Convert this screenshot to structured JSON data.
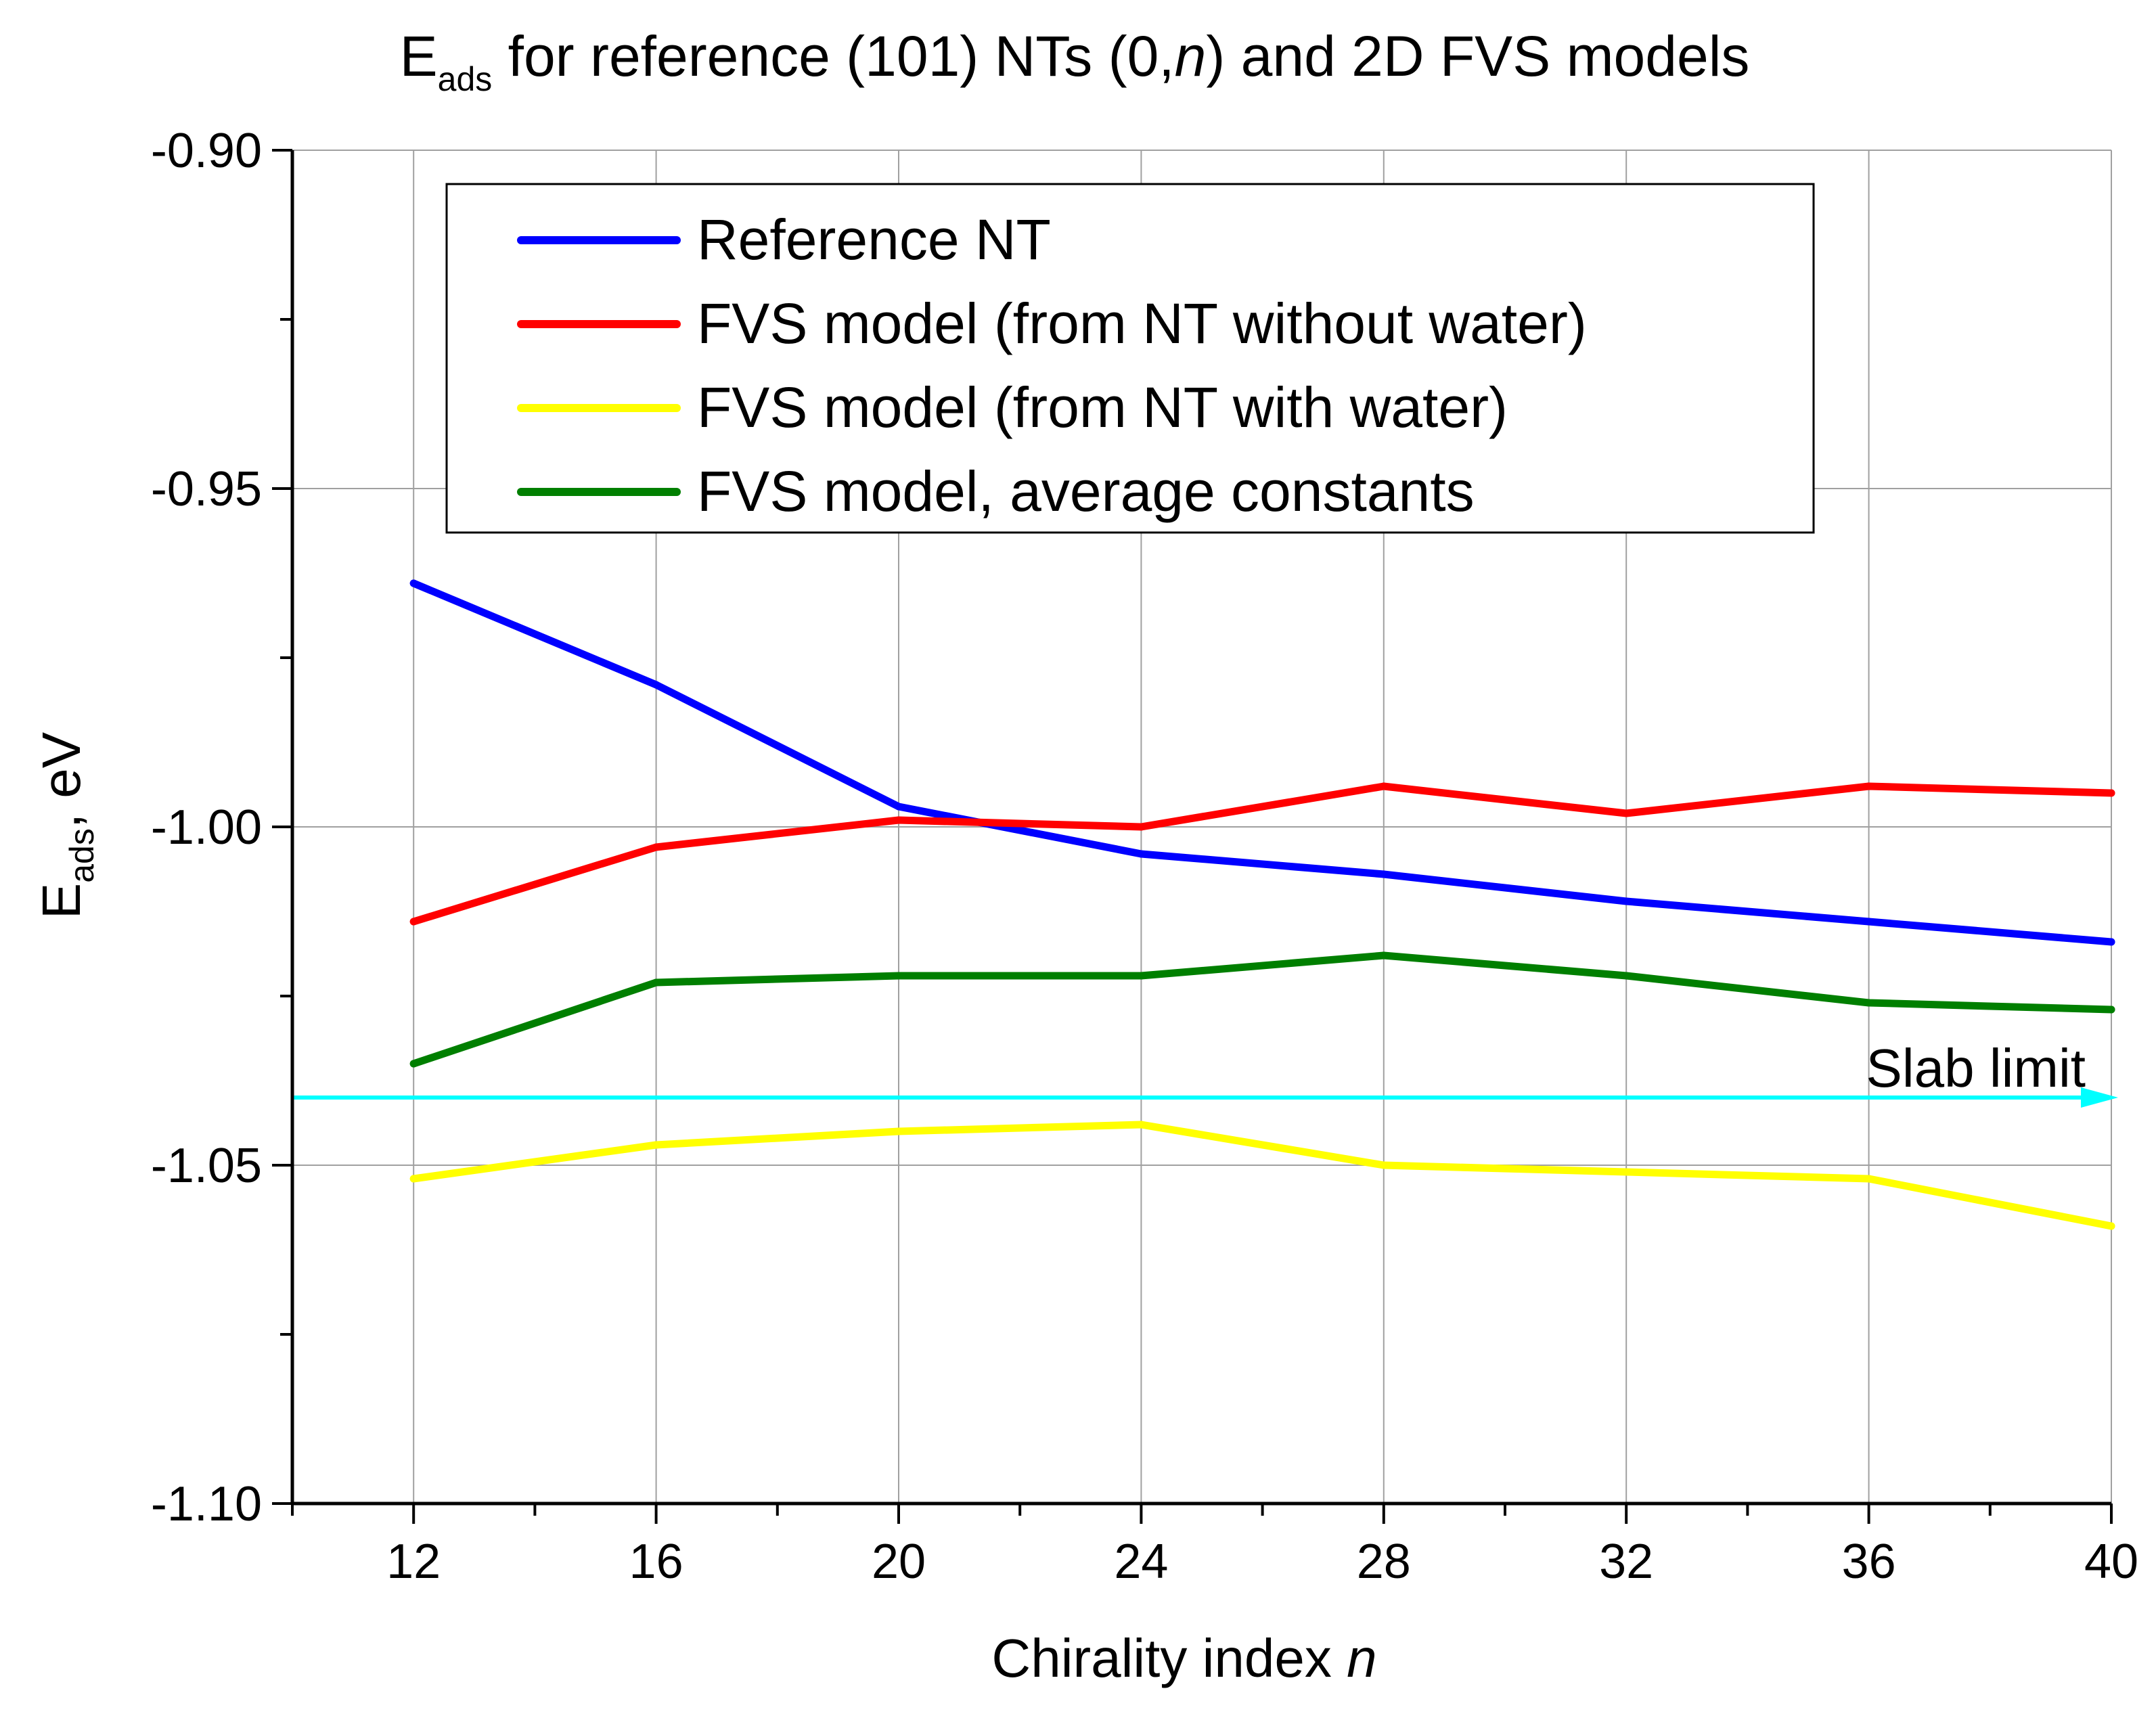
{
  "chart_data": {
    "type": "line",
    "title": {
      "main": "E",
      "subscript": "ads",
      "rest": " for reference (101) NTs (0,",
      "italic": "n",
      "end": ") and 2D FVS models"
    },
    "xlabel": {
      "text": "Chirality index ",
      "italic": "n"
    },
    "ylabel": {
      "main": "E",
      "subscript": "ads",
      "rest": ", eV"
    },
    "xlim": [
      10,
      40
    ],
    "ylim": [
      -1.1,
      -0.9
    ],
    "x_ticks": [
      12,
      16,
      20,
      24,
      28,
      32,
      36,
      40
    ],
    "x_tick_labels": [
      "12",
      "16",
      "20",
      "24",
      "28",
      "32",
      "36",
      "40"
    ],
    "y_ticks": [
      -0.9,
      -0.95,
      -1.0,
      -1.05,
      -1.1
    ],
    "y_tick_labels": [
      "-0.90",
      "-0.95",
      "-1.00",
      "-1.05",
      "-1.10"
    ],
    "grid": true,
    "legend_position": "top-right",
    "x": [
      12,
      16,
      20,
      24,
      28,
      32,
      36,
      40
    ],
    "series": [
      {
        "name": "Reference NT",
        "color": "#0000ff",
        "values": [
          -0.964,
          -0.979,
          -0.997,
          -1.004,
          -1.007,
          -1.011,
          -1.014,
          -1.017
        ]
      },
      {
        "name": "FVS model (from NT without water)",
        "color": "#ff0000",
        "values": [
          -1.014,
          -1.003,
          -0.999,
          -1.0,
          -0.994,
          -0.998,
          -0.994,
          -0.995
        ]
      },
      {
        "name": "FVS model (from NT with water)",
        "color": "#ffff00",
        "values": [
          -1.052,
          -1.047,
          -1.045,
          -1.044,
          -1.05,
          -1.051,
          -1.052,
          -1.059
        ]
      },
      {
        "name": "FVS model, average constants",
        "color": "#007f00",
        "values": [
          -1.035,
          -1.023,
          -1.022,
          -1.022,
          -1.019,
          -1.022,
          -1.026,
          -1.027
        ]
      }
    ],
    "reference_line": {
      "name": "Slab limit",
      "label": "Slab limit",
      "value": -1.04,
      "color": "#00ffff"
    }
  }
}
